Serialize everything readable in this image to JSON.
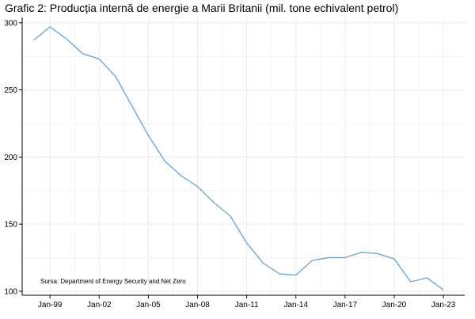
{
  "title": "Grafic 2: Producția internă de energie a Marii Britanii (mil. tone echivalent petrol)",
  "source": "Sursa: Department of Energy Security and Net Zero",
  "colors": {
    "line": "#6fa8d6",
    "grid": "#ececec",
    "axis": "#000000"
  },
  "chart_data": {
    "type": "line",
    "title": "Grafic 2: Producția internă de energie a Marii Britanii (mil. tone echivalent petrol)",
    "xlabel": "",
    "ylabel": "",
    "x": [
      1998,
      1999,
      2000,
      2001,
      2002,
      2003,
      2004,
      2005,
      2006,
      2007,
      2008,
      2009,
      2010,
      2011,
      2012,
      2013,
      2014,
      2015,
      2016,
      2017,
      2018,
      2019,
      2020,
      2021,
      2022,
      2023
    ],
    "series": [
      {
        "values": [
          287,
          297,
          288,
          277,
          273,
          260,
          238,
          216,
          197,
          186,
          178,
          166,
          156,
          136,
          121,
          113,
          112,
          123,
          125,
          125,
          129,
          128,
          124,
          107,
          110,
          101
        ]
      }
    ],
    "xticks": [
      {
        "label": "Jan-99",
        "x": 1999
      },
      {
        "label": "Jan-02",
        "x": 2002
      },
      {
        "label": "Jan-05",
        "x": 2005
      },
      {
        "label": "Jan-08",
        "x": 2008
      },
      {
        "label": "Jan-11",
        "x": 2011
      },
      {
        "label": "Jan-14",
        "x": 2014
      },
      {
        "label": "Jan-17",
        "x": 2017
      },
      {
        "label": "Jan-20",
        "x": 2020
      },
      {
        "label": "Jan-23",
        "x": 2023
      }
    ],
    "yticks": [
      100,
      150,
      200,
      250,
      300
    ],
    "xlim": [
      1997.3,
      2024.3
    ],
    "ylim": [
      97,
      304
    ],
    "grid": true,
    "legend": "none"
  }
}
